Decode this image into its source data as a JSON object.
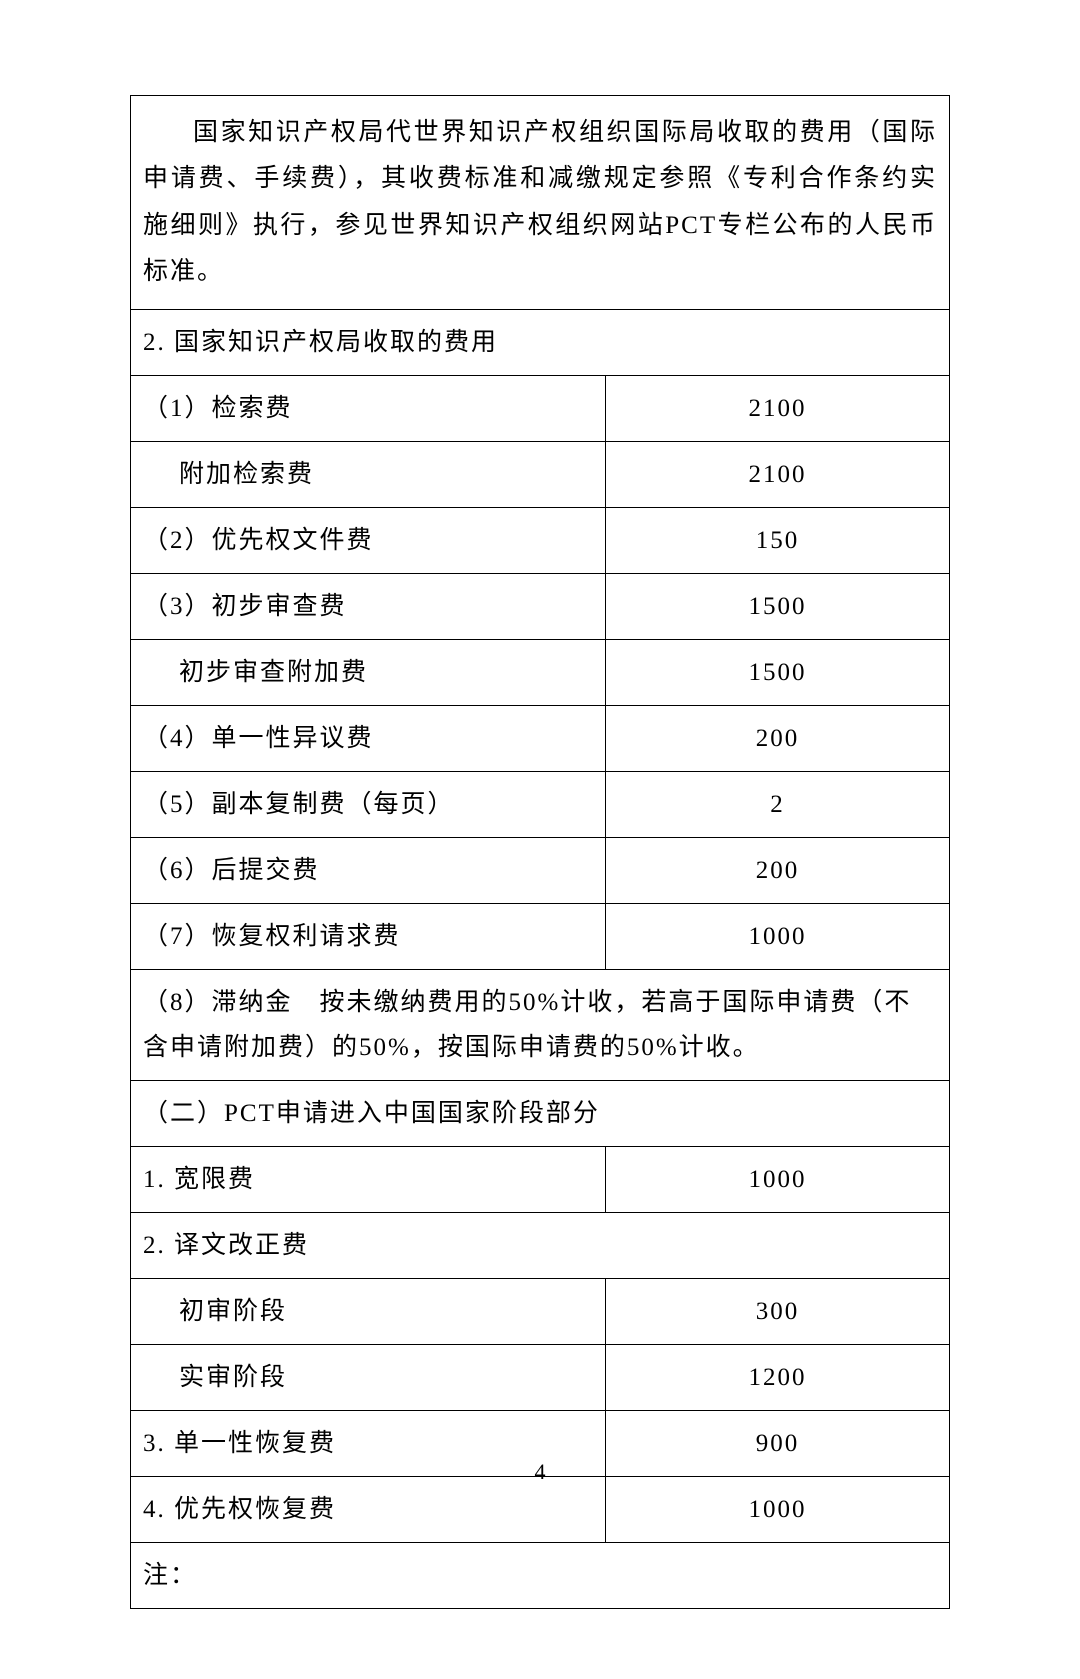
{
  "paragraph": "国家知识产权局代世界知识产权组织国际局收取的费用（国际申请费、手续费），其收费标准和减缴规定参照《专利合作条约实施细则》执行，参见世界知识产权组织网站PCT专栏公布的人民币标准。",
  "section2_header": "2. 国家知识产权局收取的费用",
  "fees": [
    {
      "label": "（1）检索费",
      "value": "2100",
      "indent": 0
    },
    {
      "label": "附加检索费",
      "value": "2100",
      "indent": 1
    },
    {
      "label": "（2）优先权文件费",
      "value": "150",
      "indent": 0
    },
    {
      "label": "（3）初步审查费",
      "value": "1500",
      "indent": 0
    },
    {
      "label": "初步审查附加费",
      "value": "1500",
      "indent": 1
    },
    {
      "label": "（4）单一性异议费",
      "value": "200",
      "indent": 0
    },
    {
      "label": "（5）副本复制费（每页）",
      "value": "2",
      "indent": 0
    },
    {
      "label": "（6）后提交费",
      "value": "200",
      "indent": 0
    },
    {
      "label": "（7）恢复权利请求费",
      "value": "1000",
      "indent": 0
    }
  ],
  "note8": "（8）滞纳金　按未缴纳费用的50%计收，若高于国际申请费（不含申请附加费）的50%，按国际申请费的50%计收。",
  "section_b_header": "（二）PCT申请进入中国国家阶段部分",
  "b_fees_1": {
    "label": "1. 宽限费",
    "value": "1000"
  },
  "b_fees_2_header": "2. 译文改正费",
  "b_fees_2a": {
    "label": "初审阶段",
    "value": "300"
  },
  "b_fees_2b": {
    "label": "实审阶段",
    "value": "1200"
  },
  "b_fees_3": {
    "label": "3. 单一性恢复费",
    "value": "900"
  },
  "b_fees_4": {
    "label": "4. 优先权恢复费",
    "value": "1000"
  },
  "footnote": "注：",
  "page_number": "4"
}
